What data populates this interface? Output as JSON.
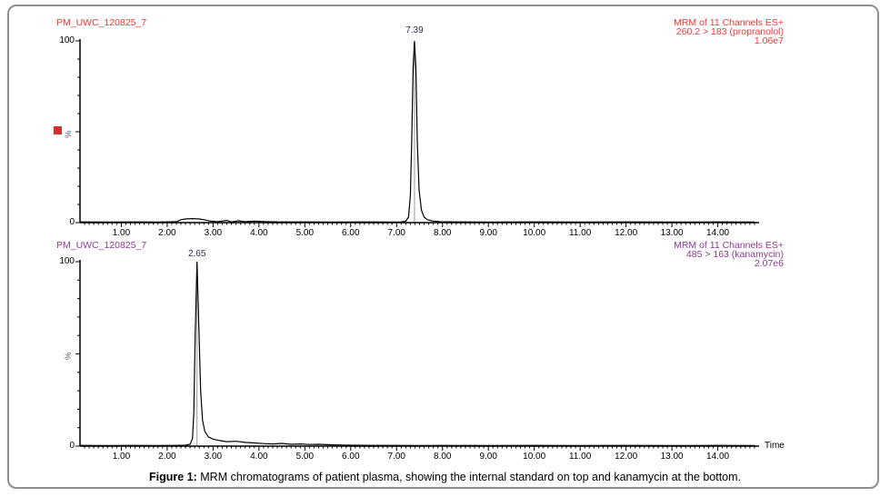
{
  "figure": {
    "caption_prefix": "Figure 1:",
    "caption_text": " MRM chromatograms of patient plasma, showing the internal standard on top and kanamycin at the bottom."
  },
  "chart_data": [
    {
      "type": "line",
      "title": "PM_UWC_120825_7",
      "header_right": [
        "MRM of 11 Channels ES+",
        "260.2 > 183 (propranolol)",
        "1.06e7"
      ],
      "accent_color": "#ff3333",
      "marker_color": "#e12a2a",
      "trace_color": "#000000",
      "ylabel": "%",
      "xlabel": "",
      "y_tick_labels": [
        "100",
        "0"
      ],
      "x_tick_labels": [
        "1.00",
        "2.00",
        "3.00",
        "4.00",
        "5.00",
        "6.00",
        "7.00",
        "8.00",
        "9.00",
        "10.00",
        "11.00",
        "12.00",
        "13.00",
        "14.00"
      ],
      "xlim": [
        0.1,
        14.9
      ],
      "ylim": [
        0,
        100
      ],
      "peak": {
        "time": 7.39,
        "label": "7.39"
      },
      "series": [
        {
          "name": "260.2 > 183 (propranolol)",
          "x": [
            0.1,
            0.6,
            1.2,
            1.8,
            2.2,
            2.3,
            2.4,
            2.55,
            2.7,
            2.8,
            2.95,
            3.1,
            3.3,
            3.4,
            3.55,
            3.7,
            3.9,
            4.1,
            4.4,
            5.0,
            5.6,
            6.2,
            6.8,
            7.1,
            7.2,
            7.26,
            7.3,
            7.33,
            7.36,
            7.39,
            7.42,
            7.45,
            7.49,
            7.54,
            7.6,
            7.68,
            7.8,
            7.95,
            8.3,
            9.0,
            10.0,
            11.0,
            12.0,
            13.0,
            14.0,
            14.8
          ],
          "y": [
            0.4,
            0.3,
            0.4,
            0.3,
            0.5,
            1.6,
            2.0,
            2.2,
            2.0,
            1.6,
            0.8,
            0.5,
            1.2,
            0.4,
            1.0,
            0.5,
            0.8,
            0.6,
            0.4,
            0.4,
            0.3,
            0.4,
            0.3,
            0.4,
            0.8,
            3,
            15,
            45,
            85,
            100,
            85,
            45,
            18,
            7,
            3,
            1.5,
            0.8,
            0.5,
            0.4,
            0.3,
            0.4,
            0.3,
            0.4,
            0.3,
            0.4,
            0.3
          ]
        }
      ]
    },
    {
      "type": "line",
      "title": "PM_UWC_120825_7",
      "header_right": [
        "MRM of 11 Channels ES+",
        "485 > 163 (kanamycin)",
        "2.07e6"
      ],
      "accent_color": "#8f3a96",
      "trace_color": "#000000",
      "ylabel": "%",
      "xlabel": "Time",
      "y_tick_labels": [
        "100",
        "0"
      ],
      "x_tick_labels": [
        "1.00",
        "2.00",
        "3.00",
        "4.00",
        "5.00",
        "6.00",
        "7.00",
        "8.00",
        "9.00",
        "10.00",
        "11.00",
        "12.00",
        "13.00",
        "14.00"
      ],
      "xlim": [
        0.1,
        14.9
      ],
      "ylim": [
        0,
        100
      ],
      "peak": {
        "time": 2.65,
        "label": "2.65"
      },
      "series": [
        {
          "name": "485 > 163 (kanamycin)",
          "x": [
            0.1,
            0.6,
            1.2,
            1.8,
            2.2,
            2.4,
            2.5,
            2.55,
            2.58,
            2.61,
            2.65,
            2.69,
            2.73,
            2.77,
            2.82,
            2.9,
            3.0,
            3.15,
            3.3,
            3.5,
            3.7,
            3.9,
            4.1,
            4.3,
            4.5,
            4.7,
            4.9,
            5.1,
            5.3,
            5.6,
            6.0,
            6.5,
            7.0,
            7.5,
            8.0,
            9.0,
            10.0,
            11.0,
            12.0,
            13.0,
            14.0,
            14.8
          ],
          "y": [
            0.4,
            0.3,
            0.4,
            0.3,
            0.4,
            0.5,
            1.0,
            4,
            18,
            60,
            100,
            65,
            30,
            14,
            8,
            5,
            3.8,
            3.0,
            2.4,
            2.6,
            2.0,
            1.7,
            1.4,
            1.2,
            1.5,
            1.0,
            1.2,
            0.9,
            1.0,
            0.7,
            0.5,
            0.4,
            0.4,
            0.3,
            0.4,
            0.3,
            0.4,
            0.3,
            0.4,
            0.3,
            0.4,
            0.3
          ]
        }
      ]
    }
  ]
}
